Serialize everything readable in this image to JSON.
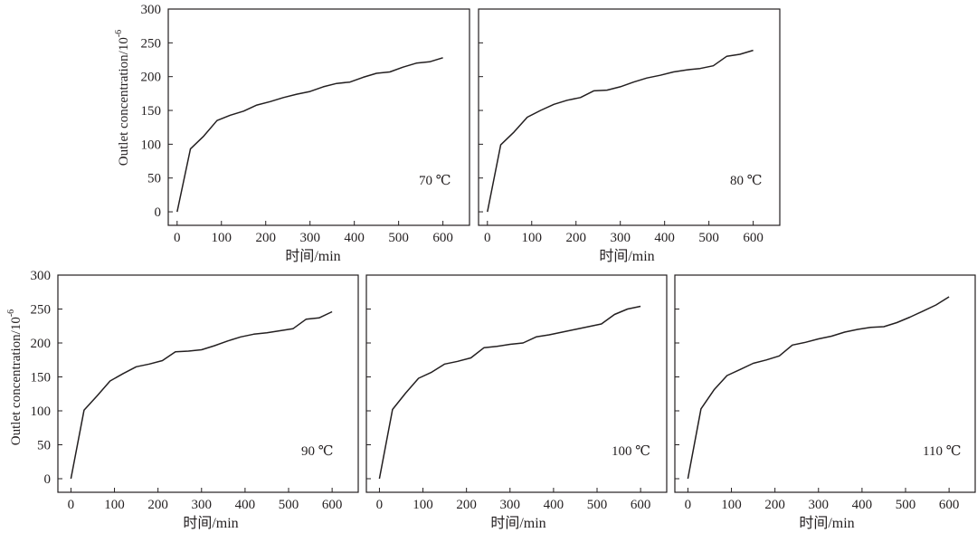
{
  "chart_data": [
    {
      "type": "line",
      "xlabel": "时间/min",
      "ylabel": "Outlet concentration/10",
      "ylabel_exp": "-6",
      "annotation": "70 ℃",
      "xlim": [
        -20,
        660
      ],
      "ylim": [
        -20,
        300
      ],
      "xticks": [
        0,
        100,
        200,
        300,
        400,
        500,
        600
      ],
      "yticks": [
        0,
        50,
        100,
        150,
        200,
        250,
        300
      ],
      "series": [
        {
          "name": "70 ℃",
          "x": [
            0,
            30,
            60,
            90,
            120,
            150,
            180,
            210,
            240,
            270,
            300,
            330,
            360,
            390,
            420,
            450,
            480,
            510,
            540,
            570,
            600
          ],
          "y": [
            0,
            93,
            112,
            135,
            143,
            149,
            158,
            163,
            169,
            174,
            178,
            185,
            190,
            192,
            199,
            205,
            207,
            214,
            220,
            222,
            228
          ]
        }
      ]
    },
    {
      "type": "line",
      "xlabel": "时间/min",
      "annotation": "80 ℃",
      "xlim": [
        -20,
        660
      ],
      "ylim": [
        -20,
        300
      ],
      "xticks": [
        0,
        100,
        200,
        300,
        400,
        500,
        600
      ],
      "yticks": [
        0,
        50,
        100,
        150,
        200,
        250,
        300
      ],
      "series": [
        {
          "name": "80 ℃",
          "x": [
            0,
            30,
            60,
            90,
            120,
            150,
            180,
            210,
            240,
            270,
            300,
            330,
            360,
            390,
            420,
            450,
            480,
            510,
            540,
            570,
            600
          ],
          "y": [
            0,
            99,
            118,
            140,
            150,
            159,
            165,
            169,
            179,
            180,
            185,
            192,
            198,
            202,
            207,
            210,
            212,
            216,
            230,
            233,
            239
          ]
        }
      ]
    },
    {
      "type": "line",
      "xlabel": "时间/min",
      "ylabel": "Outlet concentration/10",
      "ylabel_exp": "-6",
      "annotation": "90 ℃",
      "xlim": [
        -30,
        660
      ],
      "ylim": [
        -20,
        300
      ],
      "xticks": [
        0,
        100,
        200,
        300,
        400,
        500,
        600
      ],
      "yticks": [
        0,
        50,
        100,
        150,
        200,
        250,
        300
      ],
      "series": [
        {
          "name": "90 ℃",
          "x": [
            0,
            30,
            60,
            90,
            120,
            150,
            180,
            210,
            240,
            270,
            300,
            330,
            360,
            390,
            420,
            450,
            480,
            510,
            540,
            570,
            600
          ],
          "y": [
            0,
            101,
            122,
            144,
            155,
            165,
            169,
            174,
            187,
            188,
            190,
            196,
            203,
            209,
            213,
            215,
            218,
            221,
            235,
            237,
            246
          ]
        }
      ]
    },
    {
      "type": "line",
      "xlabel": "时间/min",
      "annotation": "100 ℃",
      "xlim": [
        -30,
        660
      ],
      "ylim": [
        -20,
        300
      ],
      "xticks": [
        0,
        100,
        200,
        300,
        400,
        500,
        600
      ],
      "yticks": [
        0,
        50,
        100,
        150,
        200,
        250,
        300
      ],
      "series": [
        {
          "name": "100 ℃",
          "x": [
            0,
            30,
            60,
            90,
            120,
            150,
            180,
            210,
            240,
            270,
            300,
            330,
            360,
            390,
            420,
            450,
            480,
            510,
            540,
            570,
            600
          ],
          "y": [
            0,
            102,
            126,
            148,
            157,
            169,
            173,
            178,
            193,
            195,
            198,
            200,
            209,
            212,
            216,
            220,
            224,
            228,
            242,
            250,
            254
          ]
        }
      ]
    },
    {
      "type": "line",
      "xlabel": "时间/min",
      "annotation": "110 ℃",
      "xlim": [
        -30,
        660
      ],
      "ylim": [
        -20,
        300
      ],
      "xticks": [
        0,
        100,
        200,
        300,
        400,
        500,
        600
      ],
      "yticks": [
        0,
        50,
        100,
        150,
        200,
        250,
        300
      ],
      "series": [
        {
          "name": "110 ℃",
          "x": [
            0,
            30,
            60,
            90,
            120,
            150,
            180,
            210,
            240,
            270,
            300,
            330,
            360,
            390,
            420,
            450,
            480,
            510,
            540,
            570,
            600
          ],
          "y": [
            0,
            103,
            131,
            152,
            161,
            170,
            175,
            181,
            197,
            201,
            206,
            210,
            216,
            220,
            223,
            224,
            230,
            238,
            247,
            256,
            268
          ]
        }
      ]
    }
  ],
  "colors": {
    "ink": "#231f20",
    "background": "#ffffff"
  }
}
